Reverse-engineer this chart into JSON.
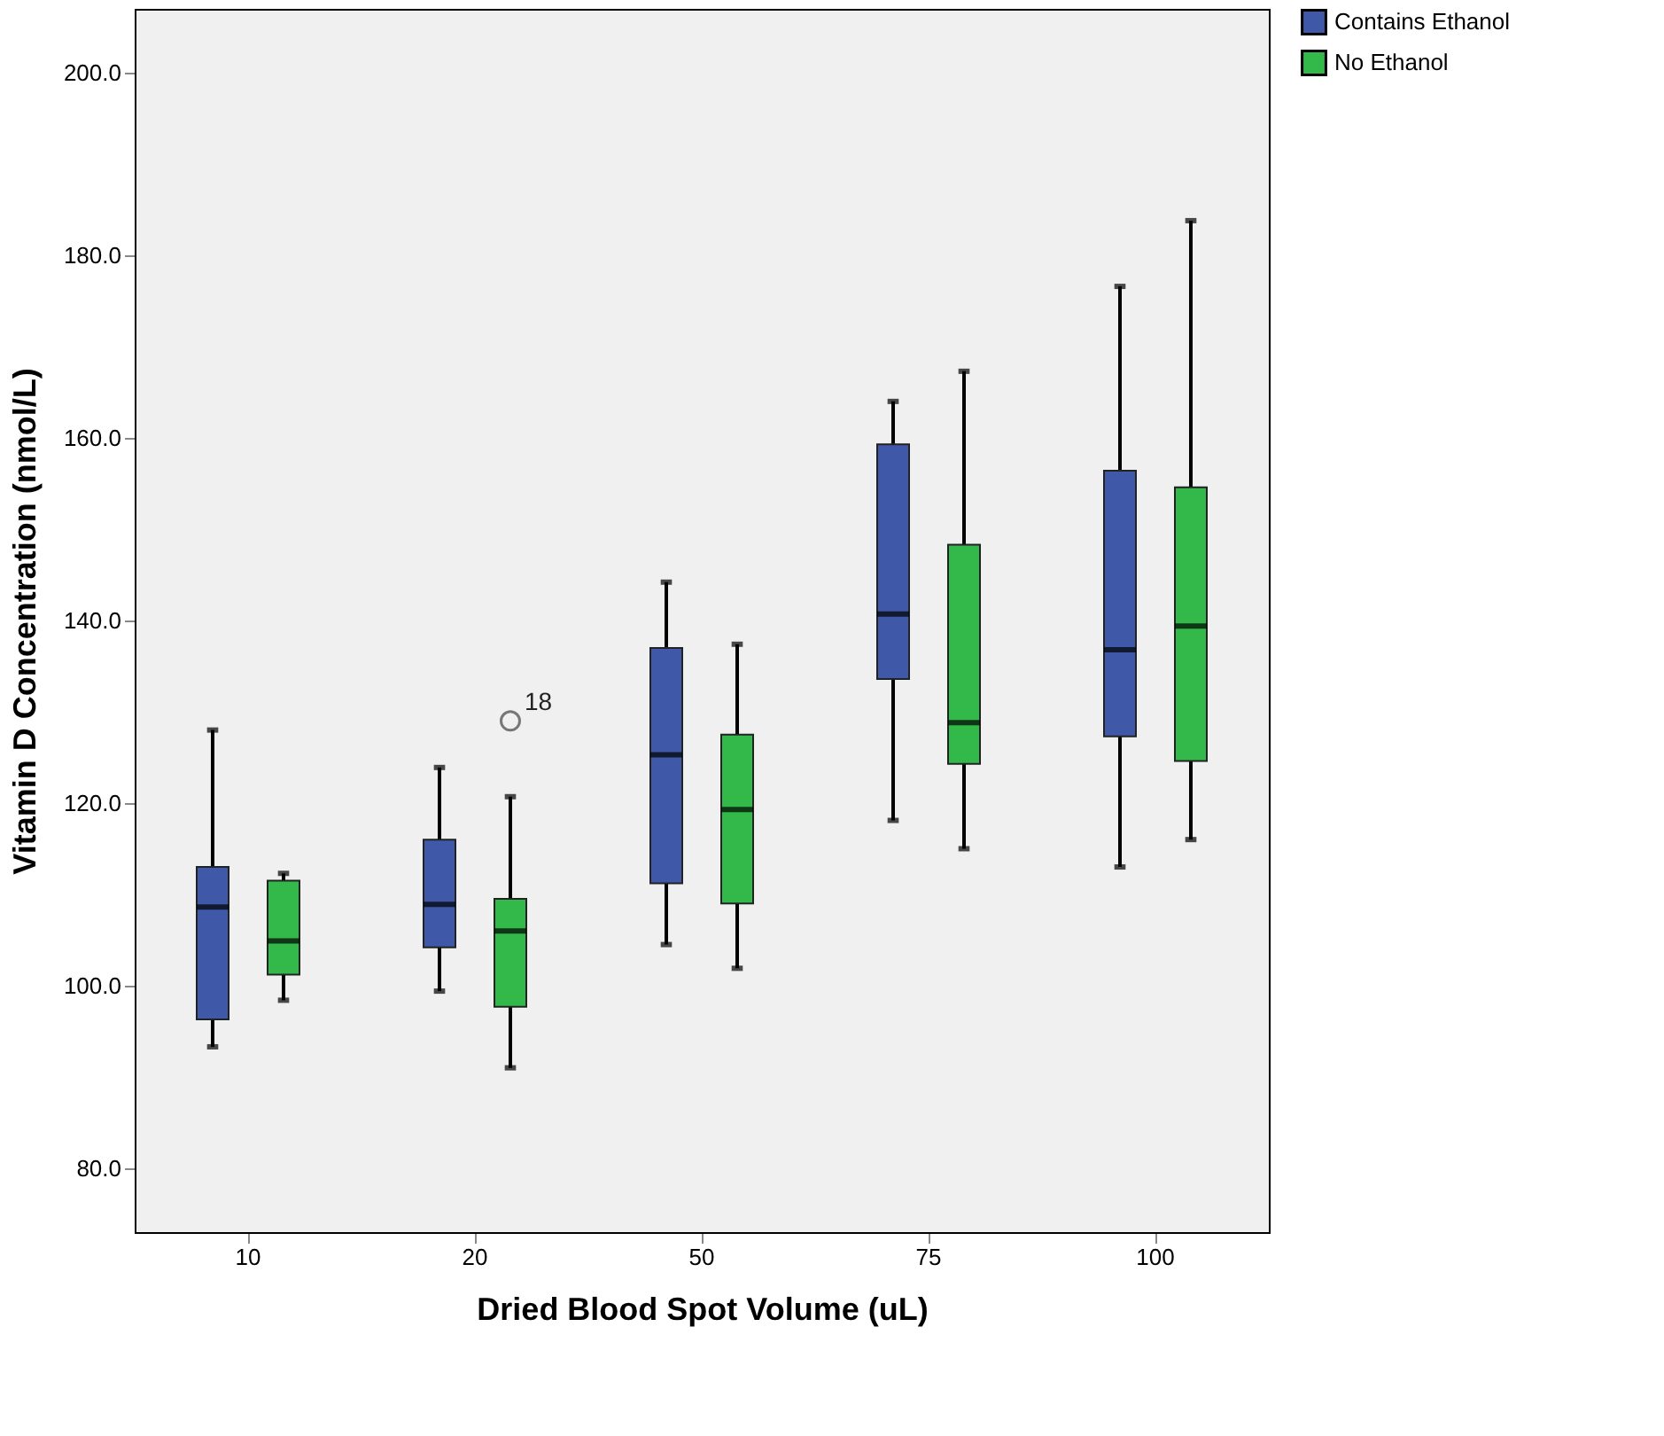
{
  "chart_data": {
    "type": "box",
    "xlabel": "Dried Blood Spot Volume (uL)",
    "ylabel": "Vitamin D Concentration (nmol/L)",
    "categories": [
      "10",
      "20",
      "50",
      "75",
      "100"
    ],
    "ylim": [
      73,
      207
    ],
    "yticks": [
      {
        "value": 80,
        "label": "80.0"
      },
      {
        "value": 100,
        "label": "100.0"
      },
      {
        "value": 120,
        "label": "120.0"
      },
      {
        "value": 140,
        "label": "140.0"
      },
      {
        "value": 160,
        "label": "160.0"
      },
      {
        "value": 180,
        "label": "180.0"
      },
      {
        "value": 200,
        "label": "200.0"
      }
    ],
    "grid": false,
    "legend": "top right",
    "series": [
      {
        "name": "Contains Ethanol",
        "color": "#3f58a8",
        "boxes": [
          {
            "low": 93.3,
            "q1": 96.3,
            "median": 108.6,
            "q3": 113,
            "high": 128
          },
          {
            "low": 99.4,
            "q1": 104.2,
            "median": 108.9,
            "q3": 116,
            "high": 123.9
          },
          {
            "low": 104.5,
            "q1": 111.2,
            "median": 125.3,
            "q3": 137,
            "high": 144.2
          },
          {
            "low": 118.1,
            "q1": 133.6,
            "median": 140.7,
            "q3": 159.3,
            "high": 164
          },
          {
            "low": 113,
            "q1": 127.3,
            "median": 136.8,
            "q3": 156.4,
            "high": 176.6
          }
        ]
      },
      {
        "name": "No Ethanol",
        "color": "#33b84a",
        "boxes": [
          {
            "low": 98.4,
            "q1": 101.2,
            "median": 104.9,
            "q3": 111.5,
            "high": 112.3
          },
          {
            "low": 91,
            "q1": 97.7,
            "median": 106,
            "q3": 109.5,
            "high": 120.7,
            "outliers": [
              129
            ]
          },
          {
            "low": 101.9,
            "q1": 109,
            "median": 119.3,
            "q3": 127.5,
            "high": 137.4
          },
          {
            "low": 115,
            "q1": 124.3,
            "median": 128.8,
            "q3": 148.3,
            "high": 167.3
          },
          {
            "low": 116,
            "q1": 124.6,
            "median": 139.4,
            "q3": 154.6,
            "high": 183.8
          }
        ]
      }
    ],
    "annotations": [
      "18"
    ]
  }
}
